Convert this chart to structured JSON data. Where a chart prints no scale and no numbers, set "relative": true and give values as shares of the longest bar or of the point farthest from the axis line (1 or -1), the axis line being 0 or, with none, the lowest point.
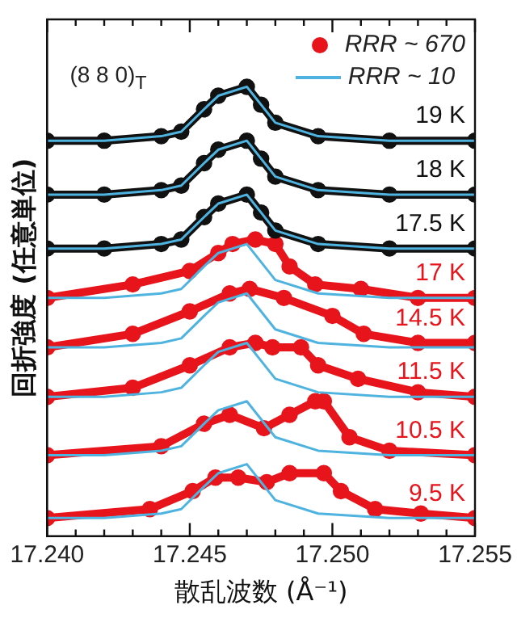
{
  "chart_data": {
    "type": "line",
    "relative": true,
    "marker": "circle",
    "legend": "top right",
    "grid": false,
    "xlabel": "散乱波数 (Å⁻¹)",
    "ylabel": "回折強度 (任意単位)",
    "xlim": [
      17.24,
      17.255
    ],
    "xticks": [
      {
        "value": 17.24,
        "label": "17.240"
      },
      {
        "value": 17.241,
        "label": null
      },
      {
        "value": 17.242,
        "label": null
      },
      {
        "value": 17.243,
        "label": null
      },
      {
        "value": 17.244,
        "label": null
      },
      {
        "value": 17.245,
        "label": "17.245"
      },
      {
        "value": 17.246,
        "label": null
      },
      {
        "value": 17.247,
        "label": null
      },
      {
        "value": 17.248,
        "label": null
      },
      {
        "value": 17.249,
        "label": null
      },
      {
        "value": 17.25,
        "label": "17.250"
      },
      {
        "value": 17.251,
        "label": null
      },
      {
        "value": 17.252,
        "label": null
      },
      {
        "value": 17.253,
        "label": null
      },
      {
        "value": 17.254,
        "label": null
      },
      {
        "value": 17.255,
        "label": "17.255"
      }
    ],
    "x": [
      17.24,
      17.242,
      17.244,
      17.2447,
      17.2455,
      17.246,
      17.247,
      17.2475,
      17.248,
      17.2495,
      17.252,
      17.255
    ],
    "series": [
      {
        "color": "#111111",
        "values": [
          0.88,
          0.88,
          0.89,
          0.9,
          0.95,
          0.98,
          1.0,
          0.96,
          0.92,
          0.89,
          0.88,
          0.88
        ]
      },
      {
        "color": "#111111",
        "values": [
          0.76,
          0.76,
          0.77,
          0.78,
          0.83,
          0.86,
          0.88,
          0.84,
          0.8,
          0.77,
          0.76,
          0.76
        ]
      },
      {
        "color": "#111111",
        "values": [
          0.64,
          0.64,
          0.65,
          0.66,
          0.71,
          0.74,
          0.76,
          0.72,
          0.68,
          0.65,
          0.64,
          0.64
        ]
      },
      {
        "name": "RRR ~ 670",
        "color": "#e8141c",
        "x": [
          17.24,
          17.243,
          17.245,
          17.246,
          17.2465,
          17.2473,
          17.248,
          17.2485,
          17.2494,
          17.251,
          17.253,
          17.255
        ],
        "values": [
          0.53,
          0.56,
          0.59,
          0.63,
          0.65,
          0.66,
          0.65,
          0.6,
          0.56,
          0.55,
          0.53,
          0.53
        ]
      },
      {
        "color": "#e8141c",
        "x": [
          17.24,
          17.243,
          17.245,
          17.2464,
          17.2471,
          17.2483,
          17.25,
          17.2511,
          17.253,
          17.255
        ],
        "values": [
          0.42,
          0.45,
          0.5,
          0.54,
          0.55,
          0.53,
          0.49,
          0.45,
          0.43,
          0.43
        ]
      },
      {
        "color": "#e8141c",
        "x": [
          17.24,
          17.243,
          17.245,
          17.2464,
          17.2473,
          17.2479,
          17.2489,
          17.2495,
          17.2509,
          17.253,
          17.255
        ],
        "values": [
          0.31,
          0.33,
          0.38,
          0.42,
          0.43,
          0.42,
          0.42,
          0.38,
          0.35,
          0.32,
          0.31
        ]
      },
      {
        "color": "#e8141c",
        "x": [
          17.24,
          17.244,
          17.2455,
          17.2464,
          17.2476,
          17.2485,
          17.2494,
          17.2497,
          17.2506,
          17.252,
          17.255
        ],
        "values": [
          0.18,
          0.2,
          0.25,
          0.27,
          0.24,
          0.27,
          0.3,
          0.3,
          0.22,
          0.19,
          0.18
        ]
      },
      {
        "color": "#e8141c",
        "x": [
          17.24,
          17.2436,
          17.2451,
          17.2459,
          17.2467,
          17.2477,
          17.2485,
          17.2497,
          17.2503,
          17.2515,
          17.2531,
          17.255
        ],
        "values": [
          0.04,
          0.06,
          0.1,
          0.13,
          0.13,
          0.12,
          0.14,
          0.14,
          0.1,
          0.06,
          0.05,
          0.04
        ]
      },
      {
        "name": "RRR ~ 10",
        "marker": "none",
        "color": "#4fb3e0",
        "values": [
          0.88,
          0.88,
          0.89,
          0.9,
          0.95,
          0.98,
          1.0,
          0.96,
          0.92,
          0.89,
          0.88,
          0.88
        ]
      },
      {
        "marker": "none",
        "color": "#4fb3e0",
        "values": [
          0.76,
          0.76,
          0.77,
          0.78,
          0.83,
          0.86,
          0.88,
          0.84,
          0.8,
          0.77,
          0.76,
          0.76
        ]
      },
      {
        "marker": "none",
        "color": "#4fb3e0",
        "values": [
          0.64,
          0.64,
          0.65,
          0.66,
          0.71,
          0.74,
          0.76,
          0.72,
          0.68,
          0.65,
          0.64,
          0.64
        ]
      },
      {
        "marker": "none",
        "color": "#4fb3e0",
        "values": [
          0.53,
          0.53,
          0.54,
          0.55,
          0.6,
          0.63,
          0.65,
          0.61,
          0.57,
          0.54,
          0.53,
          0.53
        ]
      },
      {
        "marker": "none",
        "color": "#4fb3e0",
        "values": [
          0.42,
          0.42,
          0.43,
          0.44,
          0.49,
          0.52,
          0.54,
          0.5,
          0.46,
          0.43,
          0.42,
          0.42
        ]
      },
      {
        "marker": "none",
        "color": "#4fb3e0",
        "values": [
          0.31,
          0.31,
          0.32,
          0.33,
          0.38,
          0.41,
          0.43,
          0.39,
          0.35,
          0.32,
          0.31,
          0.31
        ]
      },
      {
        "marker": "none",
        "color": "#4fb3e0",
        "values": [
          0.18,
          0.18,
          0.19,
          0.2,
          0.25,
          0.28,
          0.3,
          0.26,
          0.22,
          0.19,
          0.18,
          0.18
        ]
      },
      {
        "marker": "none",
        "color": "#4fb3e0",
        "values": [
          0.04,
          0.04,
          0.05,
          0.06,
          0.11,
          0.14,
          0.16,
          0.12,
          0.08,
          0.05,
          0.04,
          0.04
        ]
      }
    ],
    "annotations": [
      "(8 8 0)$_{T}$",
      "19 K",
      "18 K",
      "17.5 K",
      "17 K",
      "14.5 K",
      "11.5 K",
      "10.5 K",
      "9.5 K"
    ]
  }
}
